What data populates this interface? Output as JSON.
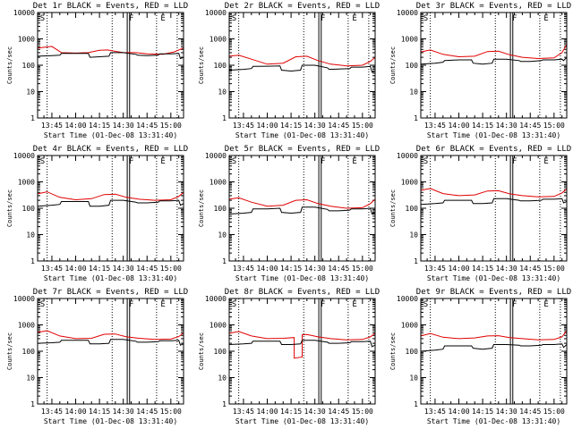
{
  "colors": {
    "events": "#000000",
    "lld": "#e00000",
    "background": "#ffffff"
  },
  "chart_data": [
    {
      "type": "line",
      "id": "1r",
      "title": "Det 1r BLACK = Events, RED = LLD",
      "xlabel": "Start Time (01-Dec-08 13:31:40)",
      "ylabel": "Counts/sec",
      "yscale": "log",
      "ylim": [
        1,
        10000
      ],
      "yticks": [
        "1",
        "10",
        "100",
        "1000",
        "10000"
      ],
      "xlim": [
        "13:36",
        "15:08"
      ],
      "xticks": [
        "13:45",
        "14:00",
        "14:15",
        "14:30",
        "14:45",
        "15:00"
      ],
      "markers": [
        "S",
        "F",
        "E"
      ],
      "series": [
        {
          "name": "LLD",
          "color": "#e00000",
          "x": [
            "13:36",
            "13:45",
            "13:51",
            "14:00",
            "14:08",
            "14:15",
            "14:20",
            "14:30",
            "14:38",
            "14:45",
            "14:55",
            "15:02",
            "15:08"
          ],
          "y": [
            450,
            520,
            300,
            290,
            300,
            370,
            380,
            300,
            300,
            270,
            260,
            320,
            450
          ]
        },
        {
          "name": "Events",
          "color": "#000000",
          "x": [
            "13:36",
            "13:45",
            "13:50",
            "13:51",
            "14:00",
            "14:08",
            "14:09",
            "14:15",
            "14:21",
            "14:22",
            "14:30",
            "14:38",
            "14:39",
            "14:45",
            "14:52",
            "14:53",
            "15:00",
            "15:05",
            "15:06",
            "15:08"
          ],
          "y": [
            220,
            230,
            240,
            280,
            280,
            280,
            200,
            210,
            220,
            300,
            300,
            260,
            240,
            230,
            240,
            270,
            270,
            280,
            180,
            200
          ]
        }
      ]
    },
    {
      "type": "line",
      "id": "2r",
      "title": "Det 2r BLACK = Events, RED = LLD",
      "xlabel": "Start Time (01-Dec-08 13:31:40)",
      "ylabel": "Counts/sec",
      "yscale": "log",
      "ylim": [
        1,
        10000
      ],
      "yticks": [
        "1",
        "10",
        "100",
        "1000",
        "10000"
      ],
      "xlim": [
        "13:36",
        "15:08"
      ],
      "xticks": [
        "13:45",
        "14:00",
        "14:15",
        "14:30",
        "14:45",
        "15:00"
      ],
      "markers": [
        "S",
        "F",
        "E"
      ],
      "series": [
        {
          "name": "LLD",
          "color": "#e00000",
          "x": [
            "13:36",
            "13:42",
            "13:50",
            "14:00",
            "14:10",
            "14:18",
            "14:25",
            "14:32",
            "14:40",
            "14:50",
            "15:00",
            "15:05",
            "15:08"
          ],
          "y": [
            220,
            240,
            170,
            110,
            120,
            210,
            220,
            150,
            110,
            95,
            100,
            140,
            200
          ]
        },
        {
          "name": "Events",
          "color": "#000000",
          "x": [
            "13:36",
            "13:45",
            "13:50",
            "13:51",
            "14:00",
            "14:08",
            "14:09",
            "14:15",
            "14:21",
            "14:22",
            "14:30",
            "14:38",
            "14:39",
            "14:45",
            "14:52",
            "14:53",
            "15:00",
            "15:05",
            "15:06",
            "15:08"
          ],
          "y": [
            65,
            70,
            75,
            90,
            92,
            95,
            65,
            60,
            65,
            100,
            100,
            80,
            70,
            72,
            75,
            85,
            85,
            90,
            55,
            60
          ]
        }
      ]
    },
    {
      "type": "line",
      "id": "3r",
      "title": "Det 3r BLACK = Events, RED = LLD",
      "xlabel": "Start Time (01-Dec-08 13:31:40)",
      "ylabel": "Counts/sec",
      "yscale": "log",
      "ylim": [
        1,
        10000
      ],
      "yticks": [
        "1",
        "10",
        "100",
        "1000",
        "10000"
      ],
      "xlim": [
        "13:36",
        "15:08"
      ],
      "xticks": [
        "13:45",
        "14:00",
        "14:15",
        "14:30",
        "14:45",
        "15:00"
      ],
      "markers": [
        "S",
        "F",
        "E"
      ],
      "series": [
        {
          "name": "LLD",
          "color": "#e00000",
          "x": [
            "13:36",
            "13:42",
            "13:50",
            "14:00",
            "14:10",
            "14:18",
            "14:25",
            "14:32",
            "14:40",
            "14:50",
            "15:00",
            "15:05",
            "15:08"
          ],
          "y": [
            320,
            380,
            260,
            210,
            220,
            330,
            340,
            250,
            200,
            180,
            190,
            300,
            600
          ]
        },
        {
          "name": "Events",
          "color": "#000000",
          "x": [
            "13:36",
            "13:45",
            "13:50",
            "13:51",
            "14:00",
            "14:08",
            "14:09",
            "14:15",
            "14:21",
            "14:22",
            "14:30",
            "14:38",
            "14:39",
            "14:45",
            "14:52",
            "14:53",
            "15:00",
            "15:05",
            "15:06",
            "15:08"
          ],
          "y": [
            110,
            120,
            130,
            150,
            160,
            160,
            120,
            110,
            120,
            170,
            170,
            150,
            140,
            140,
            150,
            160,
            160,
            170,
            150,
            200
          ]
        }
      ]
    },
    {
      "type": "line",
      "id": "4r",
      "title": "Det 4r BLACK = Events, RED = LLD",
      "xlabel": "Start Time (01-Dec-08 13:31:40)",
      "ylabel": "Counts/sec",
      "yscale": "log",
      "ylim": [
        1,
        10000
      ],
      "yticks": [
        "1",
        "10",
        "100",
        "1000",
        "10000"
      ],
      "xlim": [
        "13:36",
        "15:08"
      ],
      "xticks": [
        "13:45",
        "14:00",
        "14:15",
        "14:30",
        "14:45",
        "15:00"
      ],
      "markers": [
        "S",
        "F",
        "E"
      ],
      "series": [
        {
          "name": "LLD",
          "color": "#e00000",
          "x": [
            "13:36",
            "13:42",
            "13:50",
            "14:00",
            "14:10",
            "14:18",
            "14:25",
            "14:32",
            "14:40",
            "14:50",
            "15:00",
            "15:05",
            "15:08"
          ],
          "y": [
            350,
            420,
            260,
            210,
            230,
            330,
            340,
            260,
            220,
            200,
            210,
            280,
            400
          ]
        },
        {
          "name": "Events",
          "color": "#000000",
          "x": [
            "13:36",
            "13:45",
            "13:50",
            "13:51",
            "14:00",
            "14:08",
            "14:09",
            "14:15",
            "14:21",
            "14:22",
            "14:30",
            "14:38",
            "14:39",
            "14:45",
            "14:52",
            "14:53",
            "15:00",
            "15:05",
            "15:06",
            "15:08"
          ],
          "y": [
            120,
            130,
            140,
            180,
            180,
            180,
            120,
            120,
            130,
            200,
            200,
            170,
            160,
            160,
            170,
            190,
            190,
            200,
            130,
            150
          ]
        }
      ]
    },
    {
      "type": "line",
      "id": "5r",
      "title": "Det 5r BLACK = Events, RED = LLD",
      "xlabel": "Start Time (01-Dec-08 13:31:40)",
      "ylabel": "Counts/sec",
      "yscale": "log",
      "ylim": [
        1,
        10000
      ],
      "yticks": [
        "1",
        "10",
        "100",
        "1000",
        "10000"
      ],
      "xlim": [
        "13:36",
        "15:08"
      ],
      "xticks": [
        "13:45",
        "14:00",
        "14:15",
        "14:30",
        "14:45",
        "15:00"
      ],
      "markers": [
        "S",
        "F",
        "E"
      ],
      "series": [
        {
          "name": "LLD",
          "color": "#e00000",
          "x": [
            "13:36",
            "13:42",
            "13:50",
            "14:00",
            "14:10",
            "14:18",
            "14:25",
            "14:32",
            "14:40",
            "14:50",
            "15:00",
            "15:05",
            "15:08"
          ],
          "y": [
            220,
            250,
            170,
            120,
            130,
            200,
            210,
            150,
            120,
            100,
            105,
            150,
            220
          ]
        },
        {
          "name": "Events",
          "color": "#000000",
          "x": [
            "13:36",
            "13:45",
            "13:50",
            "13:51",
            "14:00",
            "14:08",
            "14:09",
            "14:15",
            "14:21",
            "14:22",
            "14:30",
            "14:38",
            "14:39",
            "14:45",
            "14:52",
            "14:53",
            "15:00",
            "15:05",
            "15:06",
            "15:08"
          ],
          "y": [
            60,
            65,
            70,
            95,
            95,
            100,
            70,
            65,
            70,
            110,
            110,
            90,
            80,
            80,
            85,
            95,
            95,
            100,
            60,
            70
          ]
        }
      ]
    },
    {
      "type": "line",
      "id": "6r",
      "title": "Det 6r BLACK = Events, RED = LLD",
      "xlabel": "Start Time (01-Dec-08 13:31:40)",
      "ylabel": "Counts/sec",
      "yscale": "log",
      "ylim": [
        1,
        10000
      ],
      "yticks": [
        "1",
        "10",
        "100",
        "1000",
        "10000"
      ],
      "xlim": [
        "13:36",
        "15:08"
      ],
      "xticks": [
        "13:45",
        "14:00",
        "14:15",
        "14:30",
        "14:45",
        "15:00"
      ],
      "markers": [
        "S",
        "F",
        "E"
      ],
      "series": [
        {
          "name": "LLD",
          "color": "#e00000",
          "x": [
            "13:36",
            "13:42",
            "13:50",
            "14:00",
            "14:10",
            "14:18",
            "14:25",
            "14:32",
            "14:40",
            "14:50",
            "15:00",
            "15:05",
            "15:08"
          ],
          "y": [
            480,
            560,
            360,
            300,
            320,
            450,
            460,
            350,
            300,
            270,
            280,
            380,
            550
          ]
        },
        {
          "name": "Events",
          "color": "#000000",
          "x": [
            "13:36",
            "13:45",
            "13:50",
            "13:51",
            "14:00",
            "14:08",
            "14:09",
            "14:15",
            "14:21",
            "14:22",
            "14:30",
            "14:38",
            "14:39",
            "14:45",
            "14:52",
            "14:53",
            "15:00",
            "15:05",
            "15:06",
            "15:08"
          ],
          "y": [
            140,
            150,
            160,
            200,
            200,
            200,
            150,
            150,
            160,
            230,
            230,
            200,
            190,
            190,
            200,
            220,
            220,
            230,
            160,
            180
          ]
        }
      ]
    },
    {
      "type": "line",
      "id": "7r",
      "title": "Det 7r BLACK = Events, RED = LLD",
      "xlabel": "Start Time (01-Dec-08 13:31:40)",
      "ylabel": "Counts/sec",
      "yscale": "log",
      "ylim": [
        1,
        10000
      ],
      "yticks": [
        "1",
        "10",
        "100",
        "1000",
        "10000"
      ],
      "xlim": [
        "13:36",
        "15:08"
      ],
      "xticks": [
        "13:45",
        "14:00",
        "14:15",
        "14:30",
        "14:45",
        "15:00"
      ],
      "markers": [
        "S",
        "F",
        "E"
      ],
      "series": [
        {
          "name": "LLD",
          "color": "#e00000",
          "x": [
            "13:36",
            "13:42",
            "13:50",
            "14:00",
            "14:10",
            "14:18",
            "14:25",
            "14:32",
            "14:40",
            "14:50",
            "15:00",
            "15:05",
            "15:08"
          ],
          "y": [
            520,
            600,
            380,
            300,
            310,
            440,
            450,
            350,
            310,
            280,
            290,
            360,
            500
          ]
        },
        {
          "name": "Events",
          "color": "#000000",
          "x": [
            "13:36",
            "13:45",
            "13:50",
            "13:51",
            "14:00",
            "14:08",
            "14:09",
            "14:15",
            "14:21",
            "14:22",
            "14:30",
            "14:38",
            "14:39",
            "14:45",
            "14:52",
            "14:53",
            "15:00",
            "15:05",
            "15:06",
            "15:08"
          ],
          "y": [
            200,
            210,
            220,
            260,
            260,
            260,
            190,
            190,
            200,
            280,
            280,
            240,
            220,
            220,
            230,
            250,
            250,
            260,
            170,
            190
          ]
        }
      ]
    },
    {
      "type": "line",
      "id": "8r",
      "title": "Det 8r BLACK = Events, RED = LLD",
      "xlabel": "Start Time (01-Dec-08 13:31:40)",
      "ylabel": "Counts/sec",
      "yscale": "log",
      "ylim": [
        1,
        10000
      ],
      "yticks": [
        "1",
        "10",
        "100",
        "1000",
        "10000"
      ],
      "xlim": [
        "13:36",
        "15:08"
      ],
      "xticks": [
        "13:45",
        "14:00",
        "14:15",
        "14:30",
        "14:45",
        "15:00"
      ],
      "markers": [
        "S",
        "F",
        "E"
      ],
      "series": [
        {
          "name": "LLD",
          "color": "#e00000",
          "x": [
            "13:36",
            "13:42",
            "13:50",
            "14:00",
            "14:10",
            "14:17",
            "14:17",
            "14:22",
            "14:22",
            "14:25",
            "14:32",
            "14:40",
            "14:50",
            "15:00",
            "15:05",
            "15:08"
          ],
          "y": [
            480,
            560,
            380,
            300,
            310,
            330,
            55,
            60,
            420,
            430,
            350,
            300,
            270,
            280,
            350,
            480
          ]
        },
        {
          "name": "Events",
          "color": "#000000",
          "x": [
            "13:36",
            "13:45",
            "13:50",
            "13:51",
            "14:00",
            "14:08",
            "14:09",
            "14:15",
            "14:21",
            "14:22",
            "14:30",
            "14:38",
            "14:39",
            "14:45",
            "14:52",
            "14:53",
            "15:00",
            "15:05",
            "15:06",
            "15:08"
          ],
          "y": [
            180,
            190,
            200,
            240,
            240,
            240,
            180,
            180,
            190,
            260,
            260,
            220,
            200,
            200,
            210,
            230,
            230,
            240,
            150,
            170
          ]
        }
      ]
    },
    {
      "type": "line",
      "id": "9r",
      "title": "Det 9r BLACK = Events, RED = LLD",
      "xlabel": "Start Time (01-Dec-08 13:31:40)",
      "ylabel": "Counts/sec",
      "yscale": "log",
      "ylim": [
        1,
        10000
      ],
      "yticks": [
        "1",
        "10",
        "100",
        "1000",
        "10000"
      ],
      "xlim": [
        "13:36",
        "15:08"
      ],
      "xticks": [
        "13:45",
        "14:00",
        "14:15",
        "14:30",
        "14:45",
        "15:00"
      ],
      "markers": [
        "S",
        "F",
        "E"
      ],
      "series": [
        {
          "name": "LLD",
          "color": "#e00000",
          "x": [
            "13:36",
            "13:42",
            "13:50",
            "14:00",
            "14:10",
            "14:18",
            "14:25",
            "14:32",
            "14:40",
            "14:50",
            "15:00",
            "15:05",
            "15:08"
          ],
          "y": [
            380,
            470,
            340,
            300,
            320,
            380,
            390,
            330,
            300,
            270,
            280,
            350,
            600
          ]
        },
        {
          "name": "Events",
          "color": "#000000",
          "x": [
            "13:36",
            "13:45",
            "13:50",
            "13:51",
            "14:00",
            "14:08",
            "14:09",
            "14:15",
            "14:21",
            "14:22",
            "14:30",
            "14:38",
            "14:39",
            "14:45",
            "14:52",
            "14:53",
            "15:00",
            "15:05",
            "15:06",
            "15:08"
          ],
          "y": [
            100,
            110,
            120,
            160,
            160,
            160,
            130,
            120,
            130,
            180,
            180,
            170,
            160,
            160,
            170,
            180,
            180,
            190,
            140,
            180
          ]
        }
      ]
    }
  ]
}
